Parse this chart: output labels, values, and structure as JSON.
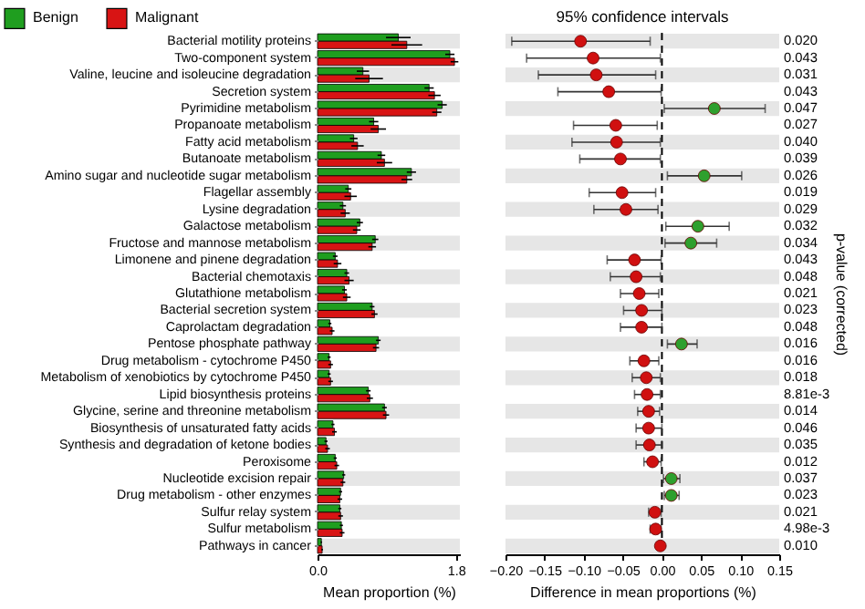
{
  "chart_data": [
    {
      "type": "bar",
      "orientation": "horizontal",
      "legend": "top left",
      "xlabel": "Mean proportion (%)",
      "xlim": [
        0,
        1.85
      ],
      "xticks": [
        {
          "value": 0,
          "label": "0.0"
        },
        1.8
      ],
      "categories": [
        "Bacterial motility proteins",
        "Two-component system",
        "Valine, leucine and isoleucine degradation",
        "Secretion system",
        "Pyrimidine metabolism",
        "Propanoate metabolism",
        "Fatty acid metabolism",
        "Butanoate metabolism",
        "Amino sugar and nucleotide sugar metabolism",
        "Flagellar assembly",
        "Lysine degradation",
        "Galactose metabolism",
        "Fructose and mannose metabolism",
        "Limonene and pinene degradation",
        "Bacterial chemotaxis",
        "Glutathione metabolism",
        "Bacterial secretion system",
        "Caprolactam degradation",
        "Pentose phosphate pathway",
        "Drug metabolism - cytochrome P450",
        "Metabolism of xenobiotics by cytochrome P450",
        "Lipid biosynthesis proteins",
        "Glycine, serine and threonine metabolism",
        "Biosynthesis of unsaturated fatty acids",
        "Synthesis and degradation of ketone bodies",
        "Peroxisome",
        "Nucleotide excision repair",
        "Drug metabolism - other enzymes",
        "Sulfur relay system",
        "Sulfur metabolism",
        "Pathways in cancer"
      ],
      "series": [
        {
          "name": "Benign",
          "color": "#1f9e1f",
          "values": [
            1.05,
            1.72,
            0.59,
            1.45,
            1.62,
            0.73,
            0.47,
            0.83,
            1.22,
            0.4,
            0.33,
            0.55,
            0.75,
            0.23,
            0.38,
            0.35,
            0.71,
            0.16,
            0.79,
            0.15,
            0.15,
            0.66,
            0.87,
            0.2,
            0.11,
            0.23,
            0.34,
            0.3,
            0.29,
            0.31,
            0.05
          ],
          "errors": [
            0.16,
            0.06,
            0.08,
            0.06,
            0.06,
            0.06,
            0.05,
            0.05,
            0.06,
            0.04,
            0.04,
            0.04,
            0.04,
            0.03,
            0.03,
            0.03,
            0.03,
            0.02,
            0.03,
            0.02,
            0.02,
            0.03,
            0.03,
            0.02,
            0.02,
            0.02,
            0.02,
            0.02,
            0.02,
            0.02,
            0.01
          ]
        },
        {
          "name": "Malignant",
          "color": "#d81414",
          "values": [
            1.16,
            1.78,
            0.67,
            1.52,
            1.55,
            0.79,
            0.52,
            0.87,
            1.16,
            0.43,
            0.36,
            0.51,
            0.71,
            0.26,
            0.41,
            0.38,
            0.74,
            0.19,
            0.76,
            0.17,
            0.17,
            0.68,
            0.89,
            0.22,
            0.13,
            0.25,
            0.33,
            0.29,
            0.3,
            0.32,
            0.06
          ],
          "errors": [
            0.2,
            0.05,
            0.18,
            0.08,
            0.06,
            0.1,
            0.08,
            0.1,
            0.07,
            0.08,
            0.06,
            0.05,
            0.05,
            0.05,
            0.06,
            0.05,
            0.04,
            0.03,
            0.04,
            0.03,
            0.03,
            0.04,
            0.04,
            0.03,
            0.03,
            0.03,
            0.03,
            0.03,
            0.03,
            0.03,
            0.01
          ]
        }
      ],
      "bands": [
        {
          "axis": "y",
          "from": "Bacterial motility proteins",
          "to": "Bacterial motility proteins",
          "color": "#e6e6e6"
        },
        {
          "axis": "y",
          "from": "Valine, leucine and isoleucine degradation",
          "to": "Valine, leucine and isoleucine degradation",
          "color": "#e6e6e6"
        },
        {
          "axis": "y",
          "from": "Pyrimidine metabolism",
          "to": "Pyrimidine metabolism",
          "color": "#e6e6e6"
        },
        {
          "axis": "y",
          "from": "Fatty acid metabolism",
          "to": "Fatty acid metabolism",
          "color": "#e6e6e6"
        },
        {
          "axis": "y",
          "from": "Amino sugar and nucleotide sugar metabolism",
          "to": "Amino sugar and nucleotide sugar metabolism",
          "color": "#e6e6e6"
        },
        {
          "axis": "y",
          "from": "Lysine degradation",
          "to": "Lysine degradation",
          "color": "#e6e6e6"
        },
        {
          "axis": "y",
          "from": "Fructose and mannose metabolism",
          "to": "Fructose and mannose metabolism",
          "color": "#e6e6e6"
        },
        {
          "axis": "y",
          "from": "Bacterial chemotaxis",
          "to": "Bacterial chemotaxis",
          "color": "#e6e6e6"
        },
        {
          "axis": "y",
          "from": "Bacterial secretion system",
          "to": "Bacterial secretion system",
          "color": "#e6e6e6"
        },
        {
          "axis": "y",
          "from": "Pentose phosphate pathway",
          "to": "Pentose phosphate pathway",
          "color": "#e6e6e6"
        },
        {
          "axis": "y",
          "from": "Metabolism of xenobiotics by cytochrome P450",
          "to": "Metabolism of xenobiotics by cytochrome P450",
          "color": "#e6e6e6"
        },
        {
          "axis": "y",
          "from": "Glycine, serine and threonine metabolism",
          "to": "Glycine, serine and threonine metabolism",
          "color": "#e6e6e6"
        },
        {
          "axis": "y",
          "from": "Synthesis and degradation of ketone bodies",
          "to": "Synthesis and degradation of ketone bodies",
          "color": "#e6e6e6"
        },
        {
          "axis": "y",
          "from": "Nucleotide excision repair",
          "to": "Nucleotide excision repair",
          "color": "#e6e6e6"
        },
        {
          "axis": "y",
          "from": "Sulfur relay system",
          "to": "Sulfur relay system",
          "color": "#e6e6e6"
        },
        {
          "axis": "y",
          "from": "Pathways in cancer",
          "to": "Pathways in cancer",
          "color": "#e6e6e6"
        }
      ]
    },
    {
      "type": "scatter",
      "orientation": "horizontal",
      "title": "95% confidence intervals",
      "xlabel": "Difference in mean proportions (%)",
      "y2label": "p-value (corrected)",
      "marker": "circle",
      "tick_labels": "x",
      "xlim": [
        -0.2,
        0.15
      ],
      "xticks": [
        {
          "value": -0.2,
          "label": "−0.20"
        },
        {
          "value": -0.15,
          "label": "−0.15"
        },
        {
          "value": -0.1,
          "label": "−0.10"
        },
        {
          "value": -0.05,
          "label": "−0.05"
        },
        {
          "value": 0,
          "label": "0.00"
        },
        {
          "value": 0.05,
          "label": "0.05"
        },
        {
          "value": 0.1,
          "label": "0.10"
        },
        {
          "value": 0.15,
          "label": "0.15"
        }
      ],
      "categories": [
        "Bacterial motility proteins",
        "Two-component system",
        "Valine, leucine and isoleucine degradation",
        "Secretion system",
        "Pyrimidine metabolism",
        "Propanoate metabolism",
        "Fatty acid metabolism",
        "Butanoate metabolism",
        "Amino sugar and nucleotide sugar metabolism",
        "Flagellar assembly",
        "Lysine degradation",
        "Galactose metabolism",
        "Fructose and mannose metabolism",
        "Limonene and pinene degradation",
        "Bacterial chemotaxis",
        "Glutathione metabolism",
        "Bacterial secretion system",
        "Caprolactam degradation",
        "Pentose phosphate pathway",
        "Drug metabolism - cytochrome P450",
        "Metabolism of xenobiotics by cytochrome P450",
        "Lipid biosynthesis proteins",
        "Glycine, serine and threonine metabolism",
        "Biosynthesis of unsaturated fatty acids",
        "Synthesis and degradation of ketone bodies",
        "Peroxisome",
        "Nucleotide excision repair",
        "Drug metabolism - other enzymes",
        "Sulfur relay system",
        "Sulfur metabolism",
        "Pathways in cancer"
      ],
      "y2_categories": [
        "0.020",
        "0.043",
        "0.031",
        "0.043",
        "0.047",
        "0.027",
        "0.040",
        "0.039",
        "0.026",
        "0.019",
        "0.029",
        "0.032",
        "0.034",
        "0.043",
        "0.048",
        "0.021",
        "0.023",
        "0.048",
        "0.016",
        "0.016",
        "0.018",
        "8.81e-3",
        "0.014",
        "0.046",
        "0.035",
        "0.012",
        "0.037",
        "0.023",
        "0.021",
        "4.98e-3",
        "0.010"
      ],
      "values": [
        -0.104,
        -0.088,
        -0.084,
        -0.068,
        0.067,
        -0.059,
        -0.058,
        -0.053,
        0.054,
        -0.051,
        -0.046,
        0.046,
        0.037,
        -0.035,
        -0.033,
        -0.029,
        -0.026,
        -0.026,
        0.025,
        -0.023,
        -0.02,
        -0.019,
        -0.017,
        -0.017,
        -0.016,
        -0.012,
        0.012,
        0.012,
        -0.009,
        -0.008,
        -0.002
      ],
      "errors": [
        [
          -0.192,
          -0.015
        ],
        [
          -0.173,
          -0.002
        ],
        [
          -0.158,
          -0.008
        ],
        [
          -0.133,
          -0.001
        ],
        [
          0.003,
          0.132
        ],
        [
          -0.113,
          -0.006
        ],
        [
          -0.115,
          -0.002
        ],
        [
          -0.105,
          -0.002
        ],
        [
          0.007,
          0.102
        ],
        [
          -0.093,
          -0.008
        ],
        [
          -0.087,
          -0.005
        ],
        [
          0.005,
          0.086
        ],
        [
          0.004,
          0.07
        ],
        [
          -0.07,
          -0.001
        ],
        [
          -0.066,
          -0.002
        ],
        [
          -0.053,
          -0.004
        ],
        [
          -0.049,
          0
        ],
        [
          -0.053,
          0
        ],
        [
          0.007,
          0.045
        ],
        [
          -0.041,
          -0.004
        ],
        [
          -0.038,
          -0.002
        ],
        [
          -0.035,
          -0.002
        ],
        [
          -0.031,
          -0.003
        ],
        [
          -0.033,
          0
        ],
        [
          -0.033,
          0
        ],
        [
          -0.023,
          -0.001
        ],
        [
          0.002,
          0.023
        ],
        [
          0.003,
          0.022
        ],
        [
          -0.017,
          -0.001
        ],
        [
          -0.015,
          -0.001
        ],
        null
      ],
      "colors": [
        "#d01010",
        "#d01010",
        "#d01010",
        "#d01010",
        "#2ea02e",
        "#d01010",
        "#d01010",
        "#d01010",
        "#2ea02e",
        "#d01010",
        "#d01010",
        "#2ea02e",
        "#2ea02e",
        "#d01010",
        "#d01010",
        "#d01010",
        "#d01010",
        "#d01010",
        "#2ea02e",
        "#d01010",
        "#d01010",
        "#d01010",
        "#d01010",
        "#d01010",
        "#d01010",
        "#d01010",
        "#2ea02e",
        "#2ea02e",
        "#d01010",
        "#d01010",
        "#d01010"
      ],
      "ref_lines": [
        {
          "axis": "x",
          "value": 0,
          "line_style": "dashed",
          "color": "#000000"
        }
      ],
      "bands": [
        {
          "axis": "y",
          "from": "Bacterial motility proteins",
          "to": "Bacterial motility proteins",
          "color": "#e6e6e6"
        },
        {
          "axis": "y",
          "from": "Valine, leucine and isoleucine degradation",
          "to": "Valine, leucine and isoleucine degradation",
          "color": "#e6e6e6"
        },
        {
          "axis": "y",
          "from": "Pyrimidine metabolism",
          "to": "Pyrimidine metabolism",
          "color": "#e6e6e6"
        },
        {
          "axis": "y",
          "from": "Fatty acid metabolism",
          "to": "Fatty acid metabolism",
          "color": "#e6e6e6"
        },
        {
          "axis": "y",
          "from": "Amino sugar and nucleotide sugar metabolism",
          "to": "Amino sugar and nucleotide sugar metabolism",
          "color": "#e6e6e6"
        },
        {
          "axis": "y",
          "from": "Lysine degradation",
          "to": "Lysine degradation",
          "color": "#e6e6e6"
        },
        {
          "axis": "y",
          "from": "Fructose and mannose metabolism",
          "to": "Fructose and mannose metabolism",
          "color": "#e6e6e6"
        },
        {
          "axis": "y",
          "from": "Bacterial chemotaxis",
          "to": "Bacterial chemotaxis",
          "color": "#e6e6e6"
        },
        {
          "axis": "y",
          "from": "Bacterial secretion system",
          "to": "Bacterial secretion system",
          "color": "#e6e6e6"
        },
        {
          "axis": "y",
          "from": "Pentose phosphate pathway",
          "to": "Pentose phosphate pathway",
          "color": "#e6e6e6"
        },
        {
          "axis": "y",
          "from": "Metabolism of xenobiotics by cytochrome P450",
          "to": "Metabolism of xenobiotics by cytochrome P450",
          "color": "#e6e6e6"
        },
        {
          "axis": "y",
          "from": "Glycine, serine and threonine metabolism",
          "to": "Glycine, serine and threonine metabolism",
          "color": "#e6e6e6"
        },
        {
          "axis": "y",
          "from": "Synthesis and degradation of ketone bodies",
          "to": "Synthesis and degradation of ketone bodies",
          "color": "#e6e6e6"
        },
        {
          "axis": "y",
          "from": "Nucleotide excision repair",
          "to": "Nucleotide excision repair",
          "color": "#e6e6e6"
        },
        {
          "axis": "y",
          "from": "Sulfur relay system",
          "to": "Sulfur relay system",
          "color": "#e6e6e6"
        },
        {
          "axis": "y",
          "from": "Pathways in cancer",
          "to": "Pathways in cancer",
          "color": "#e6e6e6"
        }
      ]
    }
  ]
}
